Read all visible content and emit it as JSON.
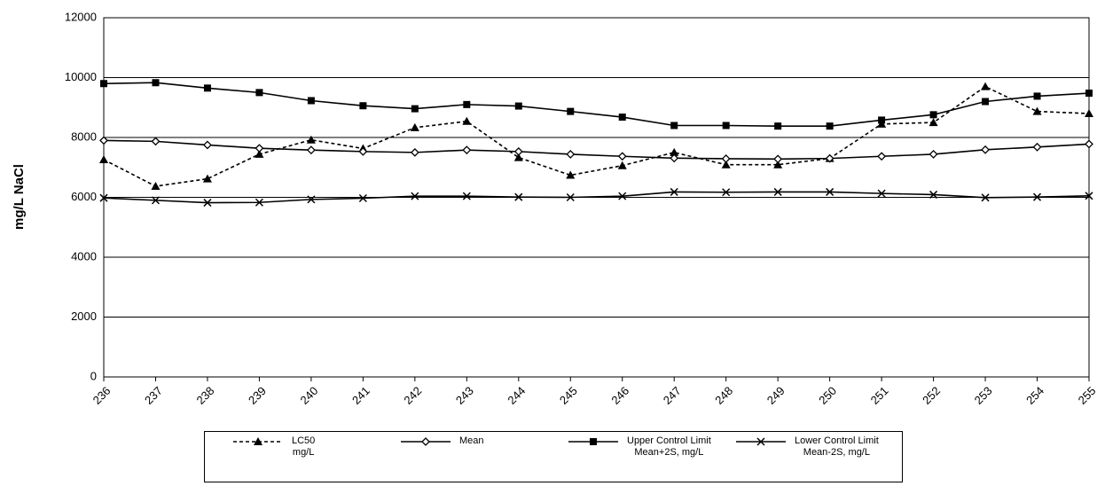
{
  "chart_data": {
    "type": "line",
    "y_label": "mg/L NaCl",
    "categories": [
      "236",
      "237",
      "238",
      "239",
      "240",
      "241",
      "242",
      "243",
      "244",
      "245",
      "246",
      "247",
      "248",
      "249",
      "250",
      "251",
      "252",
      "253",
      "254",
      "255"
    ],
    "series": [
      {
        "name": "LC50\nmg/L",
        "color": "#000000",
        "marker": "triangle",
        "dashed": true,
        "values": [
          7260,
          6370,
          6620,
          7440,
          7920,
          7630,
          8330,
          8540,
          7330,
          6740,
          7060,
          7500,
          7090,
          7090,
          7300,
          8450,
          8500,
          9700,
          8870,
          8800
        ]
      },
      {
        "name": "Mean",
        "color": "#000000",
        "marker": "diamond",
        "dashed": false,
        "values": [
          7900,
          7870,
          7750,
          7640,
          7580,
          7530,
          7500,
          7580,
          7530,
          7440,
          7370,
          7310,
          7290,
          7280,
          7300,
          7370,
          7440,
          7590,
          7680,
          7780
        ]
      },
      {
        "name": "Upper Control Limit\nMean+2S, mg/L",
        "color": "#000000",
        "marker": "square",
        "dashed": false,
        "values": [
          9800,
          9830,
          9650,
          9500,
          9230,
          9060,
          8960,
          9100,
          9050,
          8870,
          8680,
          8400,
          8400,
          8380,
          8380,
          8580,
          8760,
          9200,
          9380,
          9480
        ]
      },
      {
        "name": "Lower Control Limit\nMean-2S, mg/L",
        "color": "#000000",
        "marker": "x",
        "dashed": false,
        "values": [
          5980,
          5900,
          5820,
          5830,
          5930,
          5970,
          6040,
          6040,
          6010,
          6000,
          6040,
          6180,
          6170,
          6180,
          6180,
          6130,
          6090,
          5990,
          6010,
          6050
        ]
      }
    ],
    "ylim": [
      0,
      12000
    ],
    "yticks": [
      0,
      2000,
      4000,
      6000,
      8000,
      10000,
      12000
    ],
    "grid": true
  }
}
